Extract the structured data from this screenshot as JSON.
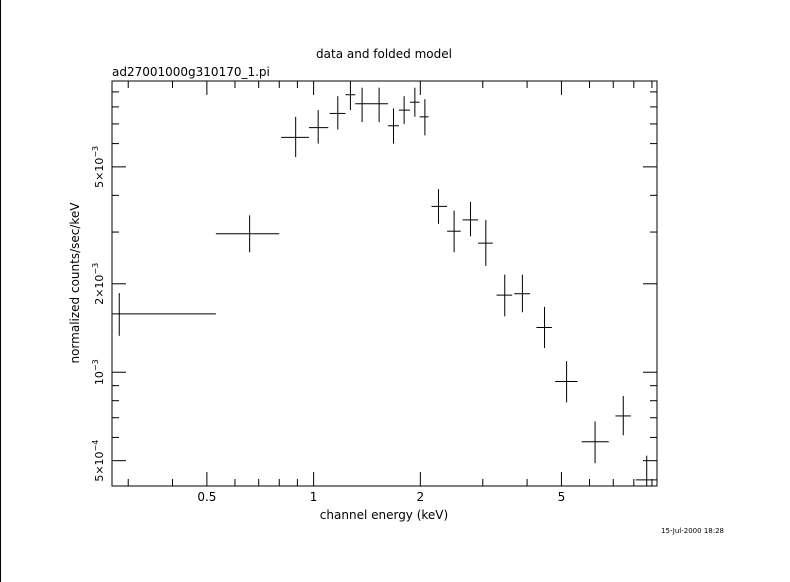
{
  "chart_data": {
    "type": "scatter",
    "title": "data and folded model",
    "subtitle": "ad27001000g310170_1.pi",
    "xlabel": "channel energy (keV)",
    "ylabel": "normalized counts/sec/keV",
    "timestamp": "15-Jul-2000 18:28",
    "x_scale": "log",
    "y_scale": "log",
    "xlim": [
      0.27,
      9.3
    ],
    "ylim": [
      0.00041,
      0.0098
    ],
    "x_ticks": [
      {
        "value": 0.5,
        "label": "0.5"
      },
      {
        "value": 1,
        "label": "1"
      },
      {
        "value": 2,
        "label": "2"
      },
      {
        "value": 5,
        "label": "5"
      }
    ],
    "y_ticks": [
      {
        "value": 0.0005,
        "mantissa": "5×10",
        "exp": "−4"
      },
      {
        "value": 0.001,
        "mantissa": "10",
        "exp": "−3"
      },
      {
        "value": 0.002,
        "mantissa": "2×10",
        "exp": "−3"
      },
      {
        "value": 0.005,
        "mantissa": "5×10",
        "exp": "−3"
      }
    ],
    "points": [
      {
        "x": 0.283,
        "xlo": 0.27,
        "xhi": 0.53,
        "y": 0.00158,
        "ylo": 0.00133,
        "yhi": 0.00186
      },
      {
        "x": 0.66,
        "xlo": 0.53,
        "xhi": 0.8,
        "y": 0.00296,
        "ylo": 0.00256,
        "yhi": 0.00342
      },
      {
        "x": 0.89,
        "xlo": 0.81,
        "xhi": 0.97,
        "y": 0.0063,
        "ylo": 0.0054,
        "yhi": 0.0074
      },
      {
        "x": 1.03,
        "xlo": 0.97,
        "xhi": 1.1,
        "y": 0.0068,
        "ylo": 0.006,
        "yhi": 0.0078
      },
      {
        "x": 1.17,
        "xlo": 1.11,
        "xhi": 1.23,
        "y": 0.0076,
        "ylo": 0.0067,
        "yhi": 0.0087
      },
      {
        "x": 1.27,
        "xlo": 1.23,
        "xhi": 1.31,
        "y": 0.0088,
        "ylo": 0.0078,
        "yhi": 0.0098
      },
      {
        "x": 1.37,
        "xlo": 1.31,
        "xhi": 1.45,
        "y": 0.0082,
        "ylo": 0.0071,
        "yhi": 0.0093
      },
      {
        "x": 1.53,
        "xlo": 1.45,
        "xhi": 1.62,
        "y": 0.0082,
        "ylo": 0.0071,
        "yhi": 0.0093
      },
      {
        "x": 1.68,
        "xlo": 1.62,
        "xhi": 1.74,
        "y": 0.0069,
        "ylo": 0.006,
        "yhi": 0.0079
      },
      {
        "x": 1.8,
        "xlo": 1.74,
        "xhi": 1.87,
        "y": 0.0078,
        "ylo": 0.007,
        "yhi": 0.0087
      },
      {
        "x": 1.93,
        "xlo": 1.87,
        "xhi": 1.99,
        "y": 0.0083,
        "ylo": 0.0074,
        "yhi": 0.0093
      },
      {
        "x": 2.06,
        "xlo": 1.99,
        "xhi": 2.11,
        "y": 0.0074,
        "ylo": 0.0064,
        "yhi": 0.0085
      },
      {
        "x": 2.25,
        "xlo": 2.15,
        "xhi": 2.38,
        "y": 0.00367,
        "ylo": 0.0032,
        "yhi": 0.0042
      },
      {
        "x": 2.49,
        "xlo": 2.38,
        "xhi": 2.6,
        "y": 0.00302,
        "ylo": 0.00256,
        "yhi": 0.00355
      },
      {
        "x": 2.77,
        "xlo": 2.63,
        "xhi": 2.91,
        "y": 0.0033,
        "ylo": 0.0029,
        "yhi": 0.0038
      },
      {
        "x": 3.06,
        "xlo": 2.91,
        "xhi": 3.2,
        "y": 0.00275,
        "ylo": 0.0023,
        "yhi": 0.0033
      },
      {
        "x": 3.46,
        "xlo": 3.28,
        "xhi": 3.63,
        "y": 0.00183,
        "ylo": 0.00155,
        "yhi": 0.00215
      },
      {
        "x": 3.88,
        "xlo": 3.68,
        "xhi": 4.08,
        "y": 0.00185,
        "ylo": 0.0016,
        "yhi": 0.00215
      },
      {
        "x": 4.48,
        "xlo": 4.25,
        "xhi": 4.7,
        "y": 0.00142,
        "ylo": 0.00121,
        "yhi": 0.00167
      },
      {
        "x": 5.17,
        "xlo": 4.8,
        "xhi": 5.55,
        "y": 0.00093,
        "ylo": 0.00079,
        "yhi": 0.00109
      },
      {
        "x": 6.22,
        "xlo": 5.7,
        "xhi": 6.8,
        "y": 0.00058,
        "ylo": 0.00049,
        "yhi": 0.00068
      },
      {
        "x": 7.47,
        "xlo": 7.1,
        "xhi": 7.85,
        "y": 0.00071,
        "ylo": 0.00061,
        "yhi": 0.00083
      },
      {
        "x": 8.7,
        "xlo": 8.1,
        "xhi": 9.3,
        "y": 0.00043,
        "ylo": 0.00041,
        "yhi": 0.00052
      }
    ]
  }
}
